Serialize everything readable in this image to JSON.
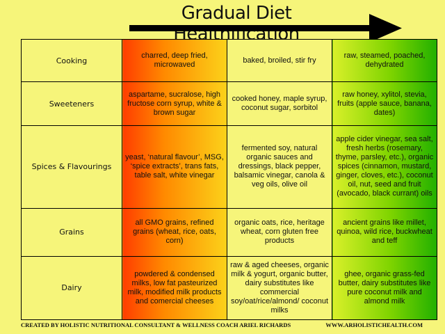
{
  "title": "Gradual Diet Healthification",
  "colors": {
    "background": "#f6f57a",
    "unhealthy": "#ff3d00",
    "neutral": "#f6f57a",
    "healthy": "#22b000"
  },
  "rows": [
    {
      "category": "Cooking",
      "unhealthy": "charred, deep fried, microwaved",
      "moderate": "baked, broiled, stir fry",
      "healthy": "raw, steamed, poached, dehydrated"
    },
    {
      "category": "Sweeteners",
      "unhealthy": "aspartame, sucralose, high fructose corn syrup, white & brown sugar",
      "moderate": "cooked honey, maple syrup, coconut sugar, sorbitol",
      "healthy": "raw honey, xylitol, stevia, fruits (apple sauce, banana, dates)"
    },
    {
      "category": "Spices & Flavourings",
      "unhealthy": "yeast, ‘natural flavour’, MSG, ‘spice extracts’, trans fats, table salt, white vinegar",
      "moderate": "fermented soy, natural organic sauces and dressings, black pepper, balsamic vinegar, canola & veg oils, olive oil",
      "healthy": "apple cider vinegar, sea salt, fresh herbs (rosemary, thyme, parsley, etc.), organic spices (cinnamon, mustard, ginger, cloves, etc.), coconut oil, nut, seed and fruit (avocado, black currant)  oils"
    },
    {
      "category": "Grains",
      "unhealthy": "all GMO grains, refined grains (wheat, rice, oats, corn)",
      "moderate": "organic oats, rice, heritage wheat, corn gluten free products",
      "healthy": "ancient grains like millet, quinoa, wild rice, buckwheat and teff"
    },
    {
      "category": "Dairy",
      "unhealthy": "powdered & condensed milks, low fat pasteurized milk, modified milk products and comercial cheeses",
      "moderate": "raw & aged cheeses, organic milk & yogurt, organic butter, dairy substitutes like commercial soy/oat/rice/almond/ coconut milks",
      "healthy": "ghee, organic grass-fed butter, dairy substitutes like pure coconut milk and almond milk"
    }
  ],
  "footer": {
    "credit": "CREATED BY HOLISTIC NUTRITIONAL CONSULTANT & WELLNESS COACH ARIEL RICHARDS",
    "website": "WWW.ARHOLISTICHEALTH.COM"
  }
}
